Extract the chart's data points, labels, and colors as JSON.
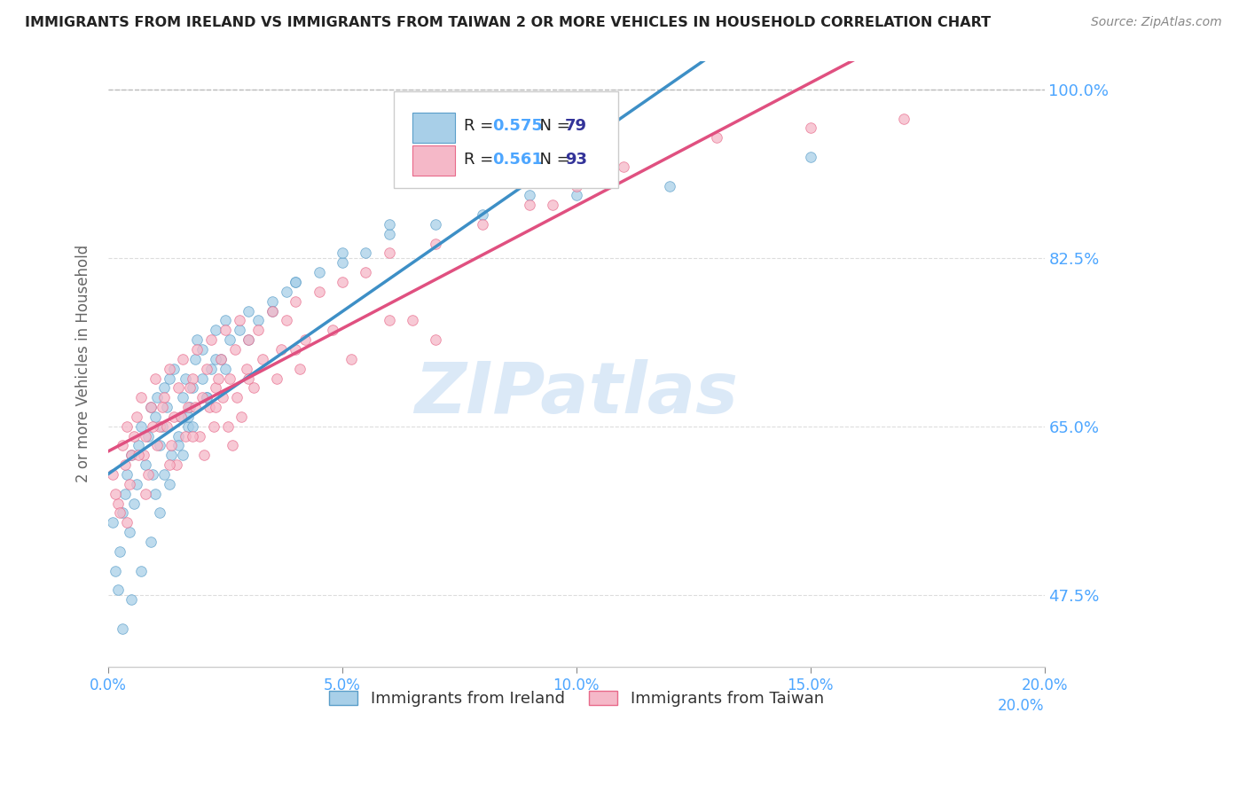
{
  "title": "IMMIGRANTS FROM IRELAND VS IMMIGRANTS FROM TAIWAN 2 OR MORE VEHICLES IN HOUSEHOLD CORRELATION CHART",
  "source": "Source: ZipAtlas.com",
  "ylabel": "2 or more Vehicles in Household",
  "series": [
    {
      "name": "Immigrants from Ireland",
      "color": "#a8cfe8",
      "edge_color": "#5a9ec9",
      "R": 0.575,
      "N": 79,
      "x": [
        0.1,
        0.15,
        0.2,
        0.25,
        0.3,
        0.35,
        0.4,
        0.45,
        0.5,
        0.55,
        0.6,
        0.65,
        0.7,
        0.8,
        0.85,
        0.9,
        0.95,
        1.0,
        1.05,
        1.1,
        1.15,
        1.2,
        1.25,
        1.3,
        1.35,
        1.4,
        1.5,
        1.55,
        1.6,
        1.65,
        1.7,
        1.75,
        1.8,
        1.85,
        1.9,
        2.0,
        2.1,
        2.2,
        2.3,
        2.4,
        2.5,
        2.6,
        2.8,
        3.0,
        3.2,
        3.5,
        3.8,
        4.0,
        4.5,
        5.0,
        5.5,
        6.0,
        7.0,
        8.0,
        10.0,
        12.0,
        1.0,
        1.2,
        1.5,
        1.7,
        2.0,
        2.3,
        0.3,
        0.5,
        0.7,
        0.9,
        1.1,
        1.3,
        1.6,
        1.8,
        2.1,
        2.5,
        3.0,
        3.5,
        4.0,
        5.0,
        6.0,
        9.0,
        15.0
      ],
      "y": [
        55,
        50,
        48,
        52,
        56,
        58,
        60,
        54,
        62,
        57,
        59,
        63,
        65,
        61,
        64,
        67,
        60,
        66,
        68,
        63,
        65,
        69,
        67,
        70,
        62,
        71,
        64,
        66,
        68,
        70,
        65,
        67,
        69,
        72,
        74,
        73,
        68,
        71,
        75,
        72,
        76,
        74,
        75,
        77,
        76,
        78,
        79,
        80,
        81,
        82,
        83,
        85,
        86,
        87,
        89,
        90,
        58,
        60,
        63,
        66,
        70,
        72,
        44,
        47,
        50,
        53,
        56,
        59,
        62,
        65,
        68,
        71,
        74,
        77,
        80,
        83,
        86,
        89,
        93
      ]
    },
    {
      "name": "Immigrants from Taiwan",
      "color": "#f5b8c8",
      "edge_color": "#e8698a",
      "R": 0.561,
      "N": 93,
      "x": [
        0.1,
        0.2,
        0.3,
        0.4,
        0.5,
        0.6,
        0.7,
        0.8,
        0.9,
        1.0,
        1.1,
        1.2,
        1.3,
        1.4,
        1.5,
        1.6,
        1.7,
        1.8,
        1.9,
        2.0,
        2.1,
        2.2,
        2.3,
        2.4,
        2.5,
        2.6,
        2.7,
        2.8,
        3.0,
        3.2,
        3.5,
        3.8,
        4.0,
        4.5,
        5.0,
        5.5,
        6.0,
        7.0,
        8.0,
        9.0,
        0.15,
        0.35,
        0.55,
        0.75,
        0.95,
        1.15,
        1.35,
        1.55,
        1.75,
        1.95,
        2.15,
        2.35,
        2.55,
        2.75,
        2.95,
        3.3,
        3.7,
        4.2,
        4.8,
        6.5,
        10.0,
        13.0,
        0.25,
        0.45,
        0.65,
        0.85,
        1.05,
        1.25,
        1.45,
        1.65,
        1.85,
        2.05,
        2.25,
        2.45,
        2.65,
        2.85,
        3.1,
        3.6,
        4.1,
        5.2,
        7.0,
        9.5,
        15.0,
        17.0,
        0.4,
        0.8,
        1.3,
        1.8,
        2.3,
        3.0,
        4.0,
        6.0,
        11.0
      ],
      "y": [
        60,
        57,
        63,
        65,
        62,
        66,
        68,
        64,
        67,
        70,
        65,
        68,
        71,
        66,
        69,
        72,
        67,
        70,
        73,
        68,
        71,
        74,
        69,
        72,
        75,
        70,
        73,
        76,
        74,
        75,
        77,
        76,
        78,
        79,
        80,
        81,
        83,
        84,
        86,
        88,
        58,
        61,
        64,
        62,
        65,
        67,
        63,
        66,
        69,
        64,
        67,
        70,
        65,
        68,
        71,
        72,
        73,
        74,
        75,
        76,
        90,
        95,
        56,
        59,
        62,
        60,
        63,
        65,
        61,
        64,
        67,
        62,
        65,
        68,
        63,
        66,
        69,
        70,
        71,
        72,
        74,
        88,
        96,
        97,
        55,
        58,
        61,
        64,
        67,
        70,
        73,
        76,
        92
      ]
    }
  ],
  "xlim": [
    0,
    20
  ],
  "ylim": [
    40,
    103
  ],
  "yticks_right": [
    47.5,
    65.0,
    82.5,
    100.0
  ],
  "ytick_labels_right": [
    "47.5%",
    "65.0%",
    "82.5%",
    "100.0%"
  ],
  "xticks": [
    0,
    5,
    10,
    15,
    20
  ],
  "xtick_labels": [
    "0.0%",
    "5.0%",
    "10.0%",
    "15.0%",
    "20.0%"
  ],
  "tick_label_color": "#4da6ff",
  "axis_label_color": "#666666",
  "grid_color": "#dddddd",
  "title_color": "#222222",
  "source_color": "#888888",
  "watermark_text": "ZIPatlas",
  "watermark_color": "#cce0f5",
  "ireland_line_color": "#3d8fc6",
  "taiwan_line_color": "#e05080",
  "ref_line_color": "#bbbbbb",
  "legend_box_color": "#eeeeee",
  "legend_R_label_color": "#4da6ff",
  "legend_N_label_color": "#333399"
}
